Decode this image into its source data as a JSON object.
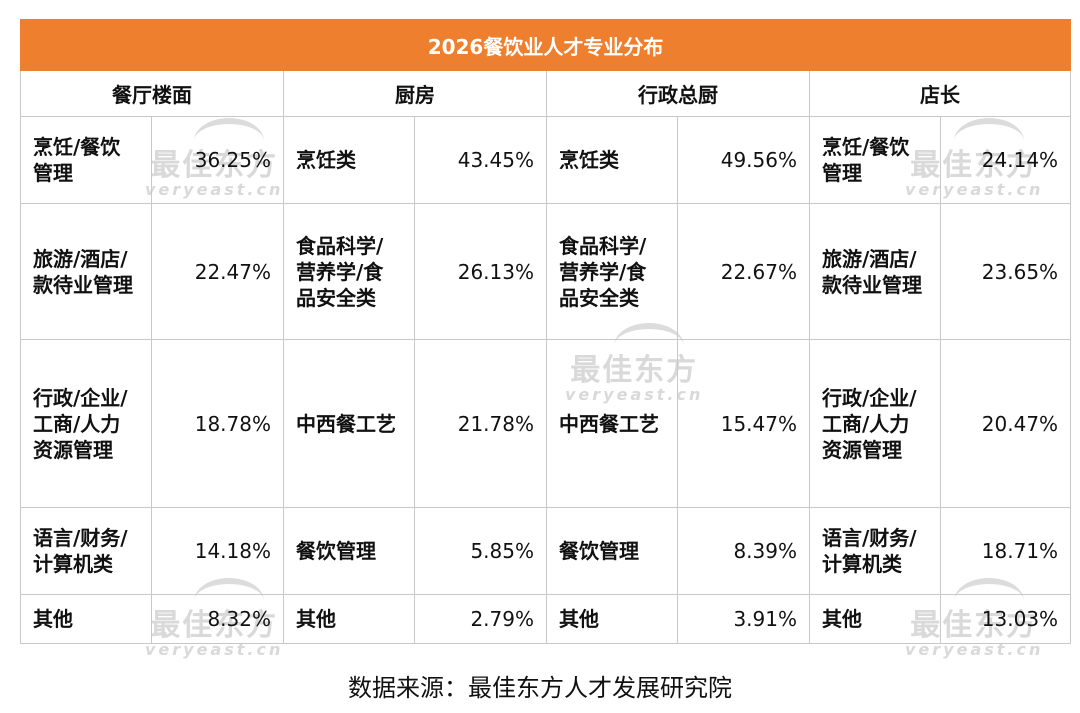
{
  "chart_data": {
    "type": "table",
    "title": "2026餐饮业人才专业分布",
    "columns": [
      "餐厅楼面",
      "厨房",
      "行政总厨",
      "店长"
    ],
    "groups": [
      {
        "name": "餐厅楼面",
        "rows": [
          {
            "category": "烹饪/餐饮管理",
            "value": "36.25%"
          },
          {
            "category": "旅游/酒店/款待业管理",
            "value": "22.47%"
          },
          {
            "category": "行政/企业/工商/人力资源管理",
            "value": "18.78%"
          },
          {
            "category": "语言/财务/计算机类",
            "value": "14.18%"
          },
          {
            "category": "其他",
            "value": "8.32%"
          }
        ]
      },
      {
        "name": "厨房",
        "rows": [
          {
            "category": "烹饪类",
            "value": "43.45%"
          },
          {
            "category": "食品科学/营养学/食品安全类",
            "value": "26.13%"
          },
          {
            "category": "中西餐工艺",
            "value": "21.78%"
          },
          {
            "category": "餐饮管理",
            "value": "5.85%"
          },
          {
            "category": "其他",
            "value": "2.79%"
          }
        ]
      },
      {
        "name": "行政总厨",
        "rows": [
          {
            "category": "烹饪类",
            "value": "49.56%"
          },
          {
            "category": "食品科学/营养学/食品安全类",
            "value": "22.67%"
          },
          {
            "category": "中西餐工艺",
            "value": "15.47%"
          },
          {
            "category": "餐饮管理",
            "value": "8.39%"
          },
          {
            "category": "其他",
            "value": "3.91%"
          }
        ]
      },
      {
        "name": "店长",
        "rows": [
          {
            "category": "烹饪/餐饮管理",
            "value": "24.14%"
          },
          {
            "category": "旅游/酒店/款待业管理",
            "value": "23.65%"
          },
          {
            "category": "行政/企业/工商/人力资源管理",
            "value": "20.47%"
          },
          {
            "category": "语言/财务/计算机类",
            "value": "18.71%"
          },
          {
            "category": "其他",
            "value": "13.03%"
          }
        ]
      }
    ]
  },
  "source": "数据来源：最佳东方人才发展研究院",
  "watermark": {
    "cn": "最佳东方",
    "en": "veryeast.cn"
  },
  "colors": {
    "header_bg": "#ee7f2e",
    "header_text": "#ffffff",
    "border": "#c8c8c8",
    "watermark": "#d9d9d9"
  }
}
